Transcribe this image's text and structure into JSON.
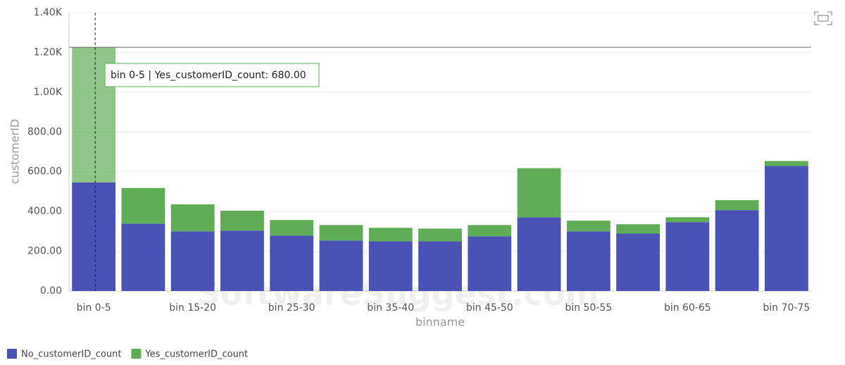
{
  "chart_data": {
    "type": "stacked_bar",
    "x_label": "binname",
    "y_label": "customerID",
    "categories": [
      "bin 0-5",
      null,
      "bin 15-20",
      null,
      "bin 25-30",
      null,
      "bin 35-40",
      null,
      "bin 45-50",
      null,
      "bin 50-55",
      null,
      "bin 60-65",
      null,
      "bin 70-75"
    ],
    "series": [
      {
        "name": "No_customerID_count",
        "color": "#4a52b5",
        "values": [
          546,
          339,
          300,
          304,
          279,
          254,
          250,
          250,
          275,
          371,
          300,
          289,
          346,
          407,
          629
        ]
      },
      {
        "name": "Yes_customerID_count",
        "color": "#5fad56",
        "values": [
          680,
          179,
          136,
          100,
          78,
          78,
          68,
          64,
          57,
          247,
          54,
          47,
          25,
          50,
          25
        ]
      }
    ],
    "ylim": [
      0,
      1400
    ],
    "yticks": [
      {
        "value": 0,
        "label": "0.00"
      },
      {
        "value": 200,
        "label": "200.00"
      },
      {
        "value": 400,
        "label": "400.00"
      },
      {
        "value": 600,
        "label": "600.00"
      },
      {
        "value": 800,
        "label": "800.00"
      },
      {
        "value": 1000,
        "label": "1.00K"
      },
      {
        "value": 1200,
        "label": "1.20K"
      },
      {
        "value": 1400,
        "label": "1.40K"
      }
    ],
    "grid": true,
    "tooltip": "bin 0-5 | Yes_customerID_count: 680.00",
    "watermark": "SoftwareSuggest.com"
  }
}
